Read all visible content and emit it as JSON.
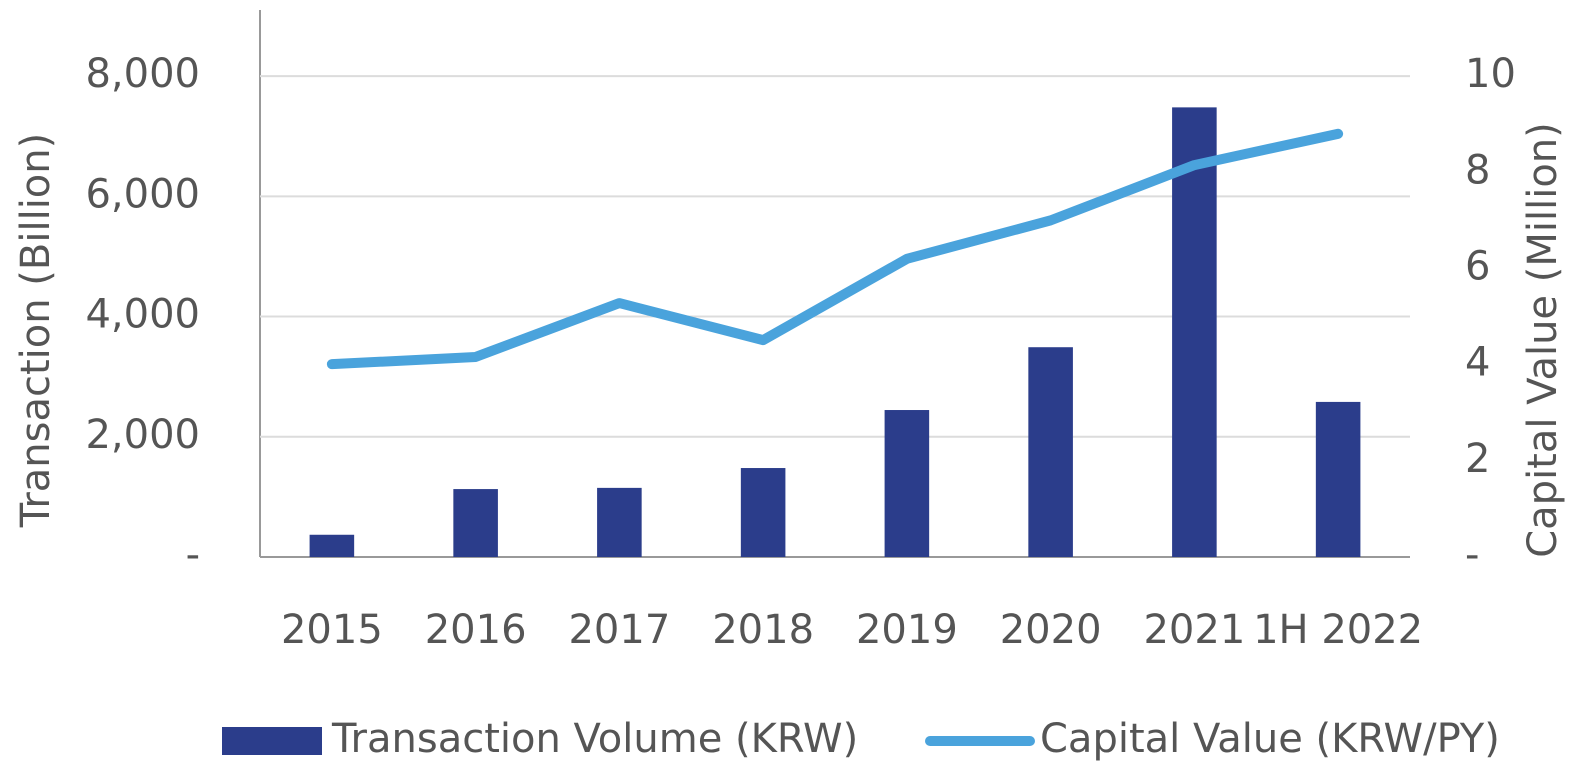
{
  "chart_data": {
    "type": "bar-line",
    "categories": [
      "2015",
      "2016",
      "2017",
      "2018",
      "2019",
      "2020",
      "2021",
      "1H 2022"
    ],
    "series": [
      {
        "name": "Transaction Volume (KRW)",
        "type": "bar",
        "color": "#2b3d8b",
        "values": [
          370,
          1130,
          1150,
          1480,
          2445,
          3490,
          7480,
          2580
        ]
      },
      {
        "name": "Capital Value (KRW/PY)",
        "type": "line",
        "axis": "y2",
        "color": "#4aa3dc",
        "values": [
          4.01,
          4.16,
          5.28,
          4.51,
          6.2,
          7.0,
          8.15,
          8.8
        ]
      }
    ],
    "ylabel": "Transaction  (Billion)",
    "y2label": "Capital Value  (Million)",
    "ylim": [
      0,
      9000
    ],
    "yticks": [
      {
        "value": 0,
        "label": "-"
      },
      {
        "value": 2000,
        "label": "2,000"
      },
      {
        "value": 4000,
        "label": "4,000"
      },
      {
        "value": 6000,
        "label": "6,000"
      },
      {
        "value": 8000,
        "label": "8,000"
      }
    ],
    "y2lim": [
      0,
      11.25
    ],
    "y2ticks": [
      {
        "value": 0,
        "label": "-"
      },
      2,
      4,
      6,
      8,
      10
    ],
    "grid": true,
    "legend": "bottom"
  }
}
